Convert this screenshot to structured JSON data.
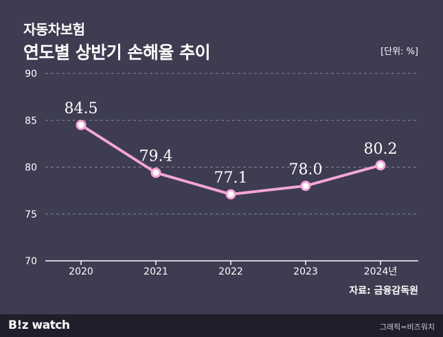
{
  "header": {
    "subtitle": "자동차보험",
    "title": "연도별 상반기 손해율 추이",
    "unit": "[단위: %]"
  },
  "source": "자료: 금융감독원",
  "footer": {
    "logo": "B!z watch",
    "credit": "그래픽=비즈워치"
  },
  "chart_data": {
    "type": "line",
    "categories": [
      "2020",
      "2021",
      "2022",
      "2023",
      "2024년"
    ],
    "series": [
      {
        "values": [
          84.5,
          79.4,
          77.1,
          78.0,
          80.2
        ]
      }
    ],
    "value_labels": [
      "84.5",
      "79.4",
      "77.1",
      "78.0",
      "80.2"
    ],
    "ylim": [
      70,
      90
    ],
    "yticks": [
      70,
      75,
      80,
      85,
      90
    ],
    "grid": true,
    "line_color": "#f4a6d4",
    "marker_fill": "#ffffff"
  }
}
